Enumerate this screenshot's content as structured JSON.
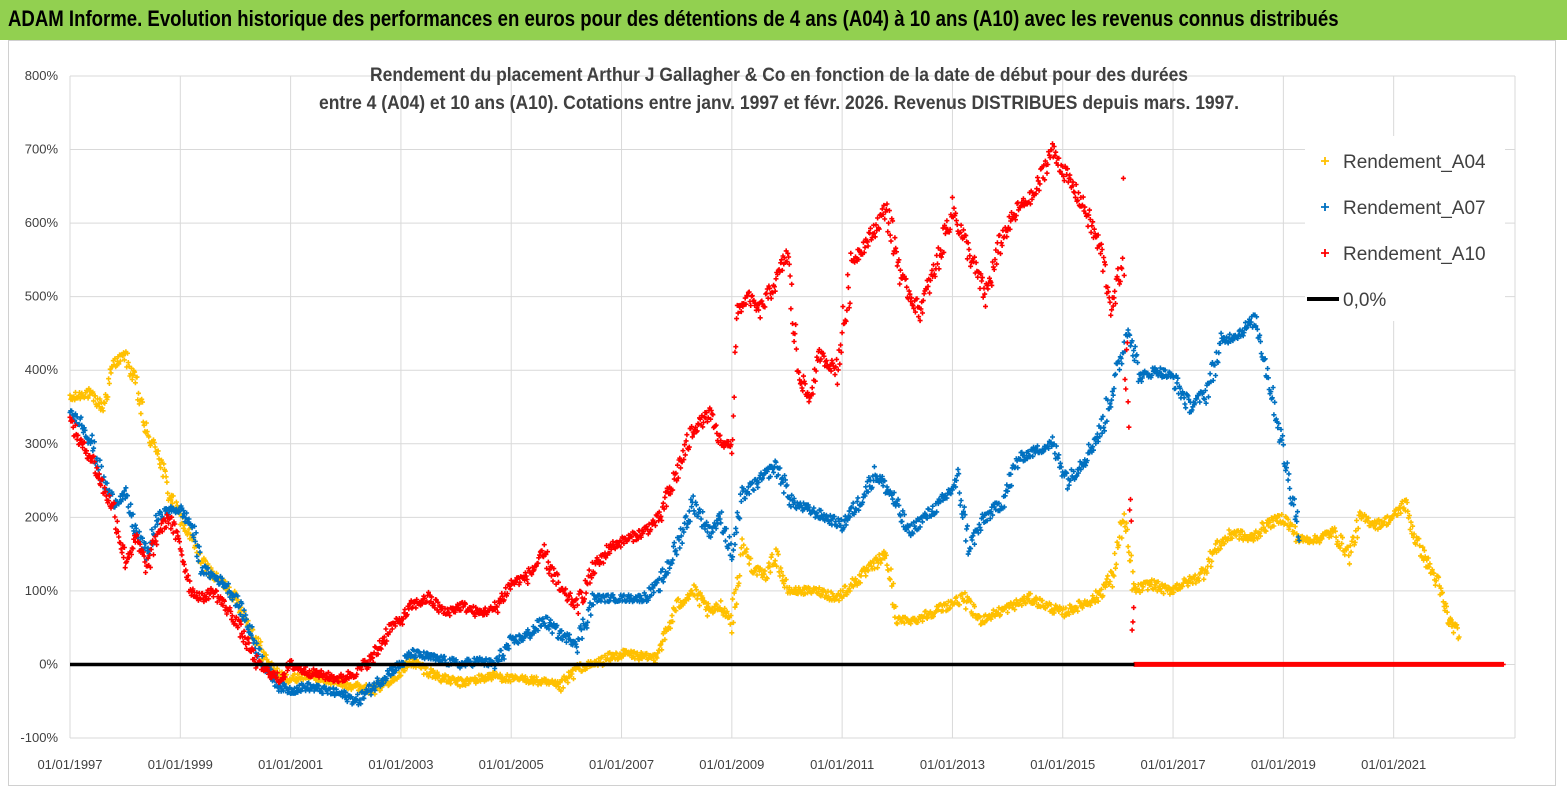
{
  "banner": {
    "text": "ADAM Informe. Evolution historique des performances en euros pour des détentions de 4 ans (A04) à 10 ans (A10) avec les revenus connus distribués",
    "color": "#92d050"
  },
  "chart_data": {
    "type": "scatter",
    "title_lines": [
      "Rendement du placement Arthur J Gallagher & Co en fonction de la date de début pour des durées",
      "entre 4 (A04) et 10 ans (A10). Cotations entre janv. 1997 et févr. 2026. Revenus DISTRIBUES depuis mars. 1997."
    ],
    "xlabel": "",
    "ylabel": "",
    "xlim": [
      1997.0,
      2023.2
    ],
    "ylim": [
      -100,
      800
    ],
    "y_ticks": [
      "-100%",
      "0%",
      "100%",
      "200%",
      "300%",
      "400%",
      "500%",
      "600%",
      "700%",
      "800%"
    ],
    "x_ticks": [
      "01/01/1997",
      "01/01/1999",
      "01/01/2001",
      "01/01/2003",
      "01/01/2005",
      "01/01/2007",
      "01/01/2009",
      "01/01/2011",
      "01/01/2013",
      "01/01/2015",
      "01/01/2017",
      "01/01/2019",
      "01/01/2021"
    ],
    "legend_position": "right",
    "series": [
      {
        "name": "Rendement_A04",
        "color": "#ffc000",
        "marker": "+",
        "points": [
          [
            1997.0,
            360
          ],
          [
            1997.3,
            370
          ],
          [
            1997.6,
            350
          ],
          [
            1997.8,
            410
          ],
          [
            1998.0,
            420
          ],
          [
            1998.2,
            380
          ],
          [
            1998.4,
            310
          ],
          [
            1998.6,
            290
          ],
          [
            1998.8,
            230
          ],
          [
            1999.0,
            200
          ],
          [
            1999.2,
            170
          ],
          [
            1999.4,
            140
          ],
          [
            1999.6,
            120
          ],
          [
            1999.8,
            110
          ],
          [
            2000.0,
            90
          ],
          [
            2000.2,
            60
          ],
          [
            2000.4,
            30
          ],
          [
            2000.6,
            0
          ],
          [
            2000.8,
            -15
          ],
          [
            2001.0,
            -20
          ],
          [
            2001.3,
            -15
          ],
          [
            2001.6,
            -20
          ],
          [
            2001.9,
            -25
          ],
          [
            2002.2,
            -30
          ],
          [
            2002.5,
            -35
          ],
          [
            2002.8,
            -20
          ],
          [
            2003.0,
            -10
          ],
          [
            2003.2,
            5
          ],
          [
            2003.5,
            -10
          ],
          [
            2003.8,
            -20
          ],
          [
            2004.1,
            -25
          ],
          [
            2004.4,
            -20
          ],
          [
            2004.7,
            -15
          ],
          [
            2005.0,
            -20
          ],
          [
            2005.3,
            -20
          ],
          [
            2005.6,
            -25
          ],
          [
            2005.9,
            -30
          ],
          [
            2006.2,
            -5
          ],
          [
            2006.5,
            0
          ],
          [
            2006.8,
            10
          ],
          [
            2007.1,
            15
          ],
          [
            2007.4,
            10
          ],
          [
            2007.6,
            10
          ],
          [
            2007.8,
            40
          ],
          [
            2008.0,
            80
          ],
          [
            2008.3,
            100
          ],
          [
            2008.6,
            70
          ],
          [
            2008.8,
            80
          ],
          [
            2009.0,
            60
          ],
          [
            2009.2,
            160
          ],
          [
            2009.4,
            130
          ],
          [
            2009.6,
            120
          ],
          [
            2009.8,
            150
          ],
          [
            2010.0,
            100
          ],
          [
            2010.3,
            100
          ],
          [
            2010.6,
            100
          ],
          [
            2010.9,
            90
          ],
          [
            2011.2,
            110
          ],
          [
            2011.5,
            130
          ],
          [
            2011.8,
            150
          ],
          [
            2012.0,
            60
          ],
          [
            2012.3,
            60
          ],
          [
            2012.6,
            70
          ],
          [
            2012.9,
            80
          ],
          [
            2013.2,
            90
          ],
          [
            2013.5,
            60
          ],
          [
            2013.8,
            70
          ],
          [
            2014.1,
            80
          ],
          [
            2014.4,
            90
          ],
          [
            2014.7,
            80
          ],
          [
            2015.0,
            70
          ],
          [
            2015.3,
            80
          ],
          [
            2015.6,
            90
          ],
          [
            2015.9,
            120
          ],
          [
            2016.1,
            200
          ],
          [
            2016.3,
            100
          ],
          [
            2016.6,
            110
          ],
          [
            2016.9,
            100
          ],
          [
            2017.2,
            110
          ],
          [
            2017.5,
            120
          ],
          [
            2017.8,
            160
          ],
          [
            2018.1,
            180
          ],
          [
            2018.4,
            170
          ],
          [
            2018.7,
            190
          ],
          [
            2019.0,
            200
          ],
          [
            2019.3,
            170
          ],
          [
            2019.6,
            170
          ],
          [
            2019.9,
            180
          ],
          [
            2020.2,
            150
          ],
          [
            2020.4,
            200
          ],
          [
            2020.7,
            190
          ],
          [
            2021.0,
            200
          ],
          [
            2021.2,
            220
          ],
          [
            2021.4,
            170
          ],
          [
            2021.6,
            140
          ],
          [
            2021.8,
            110
          ],
          [
            2022.0,
            60
          ],
          [
            2022.2,
            40
          ]
        ]
      },
      {
        "name": "Rendement_A07",
        "color": "#0070c0",
        "marker": "+",
        "points": [
          [
            1997.0,
            340
          ],
          [
            1997.2,
            330
          ],
          [
            1997.4,
            300
          ],
          [
            1997.6,
            250
          ],
          [
            1997.8,
            220
          ],
          [
            1998.0,
            230
          ],
          [
            1998.2,
            180
          ],
          [
            1998.4,
            150
          ],
          [
            1998.6,
            200
          ],
          [
            1998.8,
            210
          ],
          [
            1999.0,
            210
          ],
          [
            1999.2,
            190
          ],
          [
            1999.4,
            130
          ],
          [
            1999.6,
            120
          ],
          [
            1999.8,
            110
          ],
          [
            2000.0,
            90
          ],
          [
            2000.2,
            60
          ],
          [
            2000.4,
            20
          ],
          [
            2000.6,
            -10
          ],
          [
            2000.8,
            -30
          ],
          [
            2001.0,
            -35
          ],
          [
            2001.3,
            -30
          ],
          [
            2001.6,
            -35
          ],
          [
            2001.9,
            -40
          ],
          [
            2002.2,
            -50
          ],
          [
            2002.5,
            -30
          ],
          [
            2002.8,
            -10
          ],
          [
            2003.0,
            0
          ],
          [
            2003.2,
            15
          ],
          [
            2003.5,
            10
          ],
          [
            2003.8,
            5
          ],
          [
            2004.1,
            0
          ],
          [
            2004.4,
            5
          ],
          [
            2004.7,
            0
          ],
          [
            2005.0,
            30
          ],
          [
            2005.3,
            40
          ],
          [
            2005.6,
            60
          ],
          [
            2005.9,
            40
          ],
          [
            2006.2,
            30
          ],
          [
            2006.5,
            90
          ],
          [
            2006.8,
            90
          ],
          [
            2007.1,
            90
          ],
          [
            2007.4,
            90
          ],
          [
            2007.7,
            110
          ],
          [
            2008.0,
            160
          ],
          [
            2008.3,
            220
          ],
          [
            2008.6,
            180
          ],
          [
            2008.8,
            200
          ],
          [
            2009.0,
            150
          ],
          [
            2009.2,
            230
          ],
          [
            2009.5,
            250
          ],
          [
            2009.8,
            270
          ],
          [
            2010.1,
            220
          ],
          [
            2010.4,
            210
          ],
          [
            2010.7,
            200
          ],
          [
            2011.0,
            190
          ],
          [
            2011.3,
            220
          ],
          [
            2011.6,
            260
          ],
          [
            2011.9,
            230
          ],
          [
            2012.2,
            180
          ],
          [
            2012.5,
            200
          ],
          [
            2012.8,
            220
          ],
          [
            2013.1,
            250
          ],
          [
            2013.3,
            160
          ],
          [
            2013.6,
            200
          ],
          [
            2013.9,
            220
          ],
          [
            2014.2,
            280
          ],
          [
            2014.5,
            290
          ],
          [
            2014.8,
            300
          ],
          [
            2015.1,
            250
          ],
          [
            2015.4,
            280
          ],
          [
            2015.7,
            320
          ],
          [
            2016.0,
            400
          ],
          [
            2016.2,
            460
          ],
          [
            2016.4,
            390
          ],
          [
            2016.7,
            400
          ],
          [
            2017.0,
            390
          ],
          [
            2017.3,
            350
          ],
          [
            2017.6,
            370
          ],
          [
            2017.9,
            440
          ],
          [
            2018.2,
            450
          ],
          [
            2018.5,
            470
          ],
          [
            2018.7,
            400
          ],
          [
            2018.9,
            330
          ],
          [
            2019.1,
            250
          ],
          [
            2019.3,
            180
          ]
        ]
      },
      {
        "name": "Rendement_A10",
        "color": "#ff0000",
        "marker": "+",
        "points": [
          [
            1997.0,
            330
          ],
          [
            1997.2,
            300
          ],
          [
            1997.4,
            280
          ],
          [
            1997.6,
            240
          ],
          [
            1997.8,
            210
          ],
          [
            1998.0,
            140
          ],
          [
            1998.2,
            170
          ],
          [
            1998.4,
            130
          ],
          [
            1998.6,
            180
          ],
          [
            1998.8,
            200
          ],
          [
            1999.0,
            160
          ],
          [
            1999.2,
            100
          ],
          [
            1999.4,
            90
          ],
          [
            1999.6,
            100
          ],
          [
            1999.8,
            80
          ],
          [
            2000.0,
            60
          ],
          [
            2000.2,
            30
          ],
          [
            2000.4,
            0
          ],
          [
            2000.6,
            -10
          ],
          [
            2000.8,
            -20
          ],
          [
            2001.0,
            0
          ],
          [
            2001.3,
            -10
          ],
          [
            2001.6,
            -15
          ],
          [
            2001.9,
            -20
          ],
          [
            2002.2,
            -10
          ],
          [
            2002.5,
            10
          ],
          [
            2002.8,
            50
          ],
          [
            2003.0,
            60
          ],
          [
            2003.2,
            80
          ],
          [
            2003.5,
            90
          ],
          [
            2003.8,
            70
          ],
          [
            2004.1,
            80
          ],
          [
            2004.4,
            70
          ],
          [
            2004.7,
            75
          ],
          [
            2005.0,
            110
          ],
          [
            2005.3,
            120
          ],
          [
            2005.6,
            150
          ],
          [
            2005.9,
            100
          ],
          [
            2006.2,
            80
          ],
          [
            2006.5,
            130
          ],
          [
            2006.8,
            160
          ],
          [
            2007.1,
            170
          ],
          [
            2007.4,
            180
          ],
          [
            2007.7,
            200
          ],
          [
            2008.0,
            260
          ],
          [
            2008.3,
            320
          ],
          [
            2008.6,
            340
          ],
          [
            2008.8,
            300
          ],
          [
            2009.0,
            300
          ],
          [
            2009.1,
            480
          ],
          [
            2009.3,
            500
          ],
          [
            2009.5,
            480
          ],
          [
            2009.8,
            520
          ],
          [
            2010.0,
            560
          ],
          [
            2010.2,
            400
          ],
          [
            2010.4,
            360
          ],
          [
            2010.6,
            420
          ],
          [
            2010.9,
            400
          ],
          [
            2011.2,
            550
          ],
          [
            2011.5,
            580
          ],
          [
            2011.8,
            620
          ],
          [
            2012.1,
            520
          ],
          [
            2012.4,
            480
          ],
          [
            2012.7,
            540
          ],
          [
            2013.0,
            620
          ],
          [
            2013.3,
            560
          ],
          [
            2013.6,
            500
          ],
          [
            2013.9,
            580
          ],
          [
            2014.2,
            620
          ],
          [
            2014.5,
            640
          ],
          [
            2014.8,
            700
          ],
          [
            2015.1,
            660
          ],
          [
            2015.4,
            620
          ],
          [
            2015.7,
            560
          ],
          [
            2015.9,
            480
          ],
          [
            2016.1,
            560
          ],
          [
            2016.3,
            0
          ],
          [
            2017.0,
            0
          ],
          [
            2018.0,
            0
          ],
          [
            2019.0,
            0
          ],
          [
            2020.0,
            0
          ],
          [
            2021.0,
            0
          ],
          [
            2022.0,
            0
          ],
          [
            2023.0,
            0
          ]
        ]
      },
      {
        "name": "0,0%",
        "color": "#000000",
        "marker": "line",
        "points": [
          [
            1997.0,
            0
          ],
          [
            2016.3,
            0
          ]
        ]
      }
    ]
  }
}
